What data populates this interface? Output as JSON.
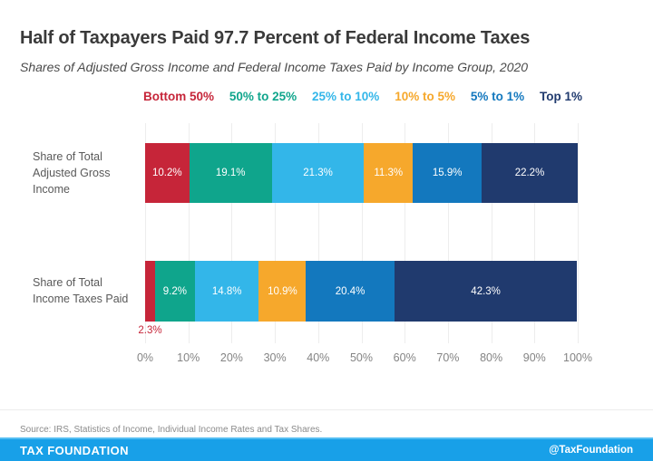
{
  "header": {
    "title": "Half of Taxpayers Paid 97.7 Percent of Federal Income Taxes",
    "subtitle": "Shares of Adjusted Gross Income and Federal Income Taxes Paid by Income Group, 2020"
  },
  "chart_data": {
    "type": "bar",
    "orientation": "horizontal",
    "stacked": true,
    "title": "Half of Taxpayers Paid 97.7 Percent of Federal Income Taxes",
    "subtitle": "Shares of Adjusted Gross Income and Federal Income Taxes Paid by Income Group, 2020",
    "categories": [
      "Share of Total Adjusted Gross Income",
      "Share of Total Income Taxes Paid"
    ],
    "series": [
      {
        "name": "Bottom 50%",
        "color": "#c62539",
        "values": [
          10.2,
          2.3
        ]
      },
      {
        "name": "50% to 25%",
        "color": "#0fa58c",
        "values": [
          19.1,
          9.2
        ]
      },
      {
        "name": "25% to 10%",
        "color": "#33b6e9",
        "values": [
          21.3,
          14.8
        ]
      },
      {
        "name": "10% to 5%",
        "color": "#f6a82c",
        "values": [
          11.3,
          10.9
        ]
      },
      {
        "name": "5% to 1%",
        "color": "#1378be",
        "values": [
          15.9,
          20.4
        ]
      },
      {
        "name": "Top 1%",
        "color": "#203a6e",
        "values": [
          22.2,
          42.3
        ]
      }
    ],
    "x_ticks": [
      "0%",
      "10%",
      "20%",
      "30%",
      "40%",
      "50%",
      "60%",
      "70%",
      "80%",
      "90%",
      "100%"
    ],
    "xlim": [
      0,
      100
    ],
    "grid": true,
    "legend_position": "top",
    "value_label_format": "one_decimal_percent",
    "small_segment_threshold": 4,
    "outside_labels": [
      {
        "category_index": 1,
        "series_index": 0,
        "label": "2.3%"
      }
    ]
  },
  "footer": {
    "source": "Source: IRS, Statistics of Income, Individual Income Rates and Tax Shares.",
    "brand": "TAX FOUNDATION",
    "handle": "@TaxFoundation",
    "bar_color": "#18a0e8"
  }
}
